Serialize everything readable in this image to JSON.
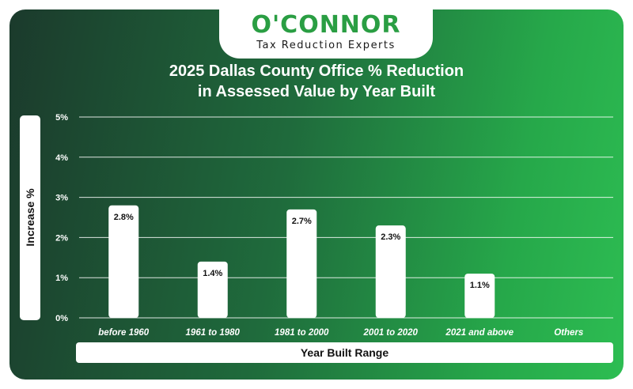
{
  "logo": {
    "name": "O'CONNOR",
    "tagline": "Tax Reduction Experts"
  },
  "colors": {
    "brand": "#2a9e43",
    "bar": "#ffffff",
    "grid": "#ffffff"
  },
  "chart_data": {
    "type": "bar",
    "title": "2025 Dallas County Office % Reduction",
    "title_line2": "in Assessed Value by Year Built",
    "xlabel": "Year Built Range",
    "ylabel": "Increase %",
    "categories": [
      "before 1960",
      "1961 to 1980",
      "1981 to 2000",
      "2001 to 2020",
      "2021 and above",
      "Others"
    ],
    "values": [
      2.8,
      1.4,
      2.7,
      2.3,
      1.1,
      null
    ],
    "data_labels": [
      "2.8%",
      "1.4%",
      "2.7%",
      "2.3%",
      "1.1%",
      ""
    ],
    "ylim": [
      0,
      5
    ],
    "yticks": [
      "0%",
      "1%",
      "2%",
      "3%",
      "4%",
      "5%"
    ],
    "grid": true,
    "legend": "none"
  }
}
